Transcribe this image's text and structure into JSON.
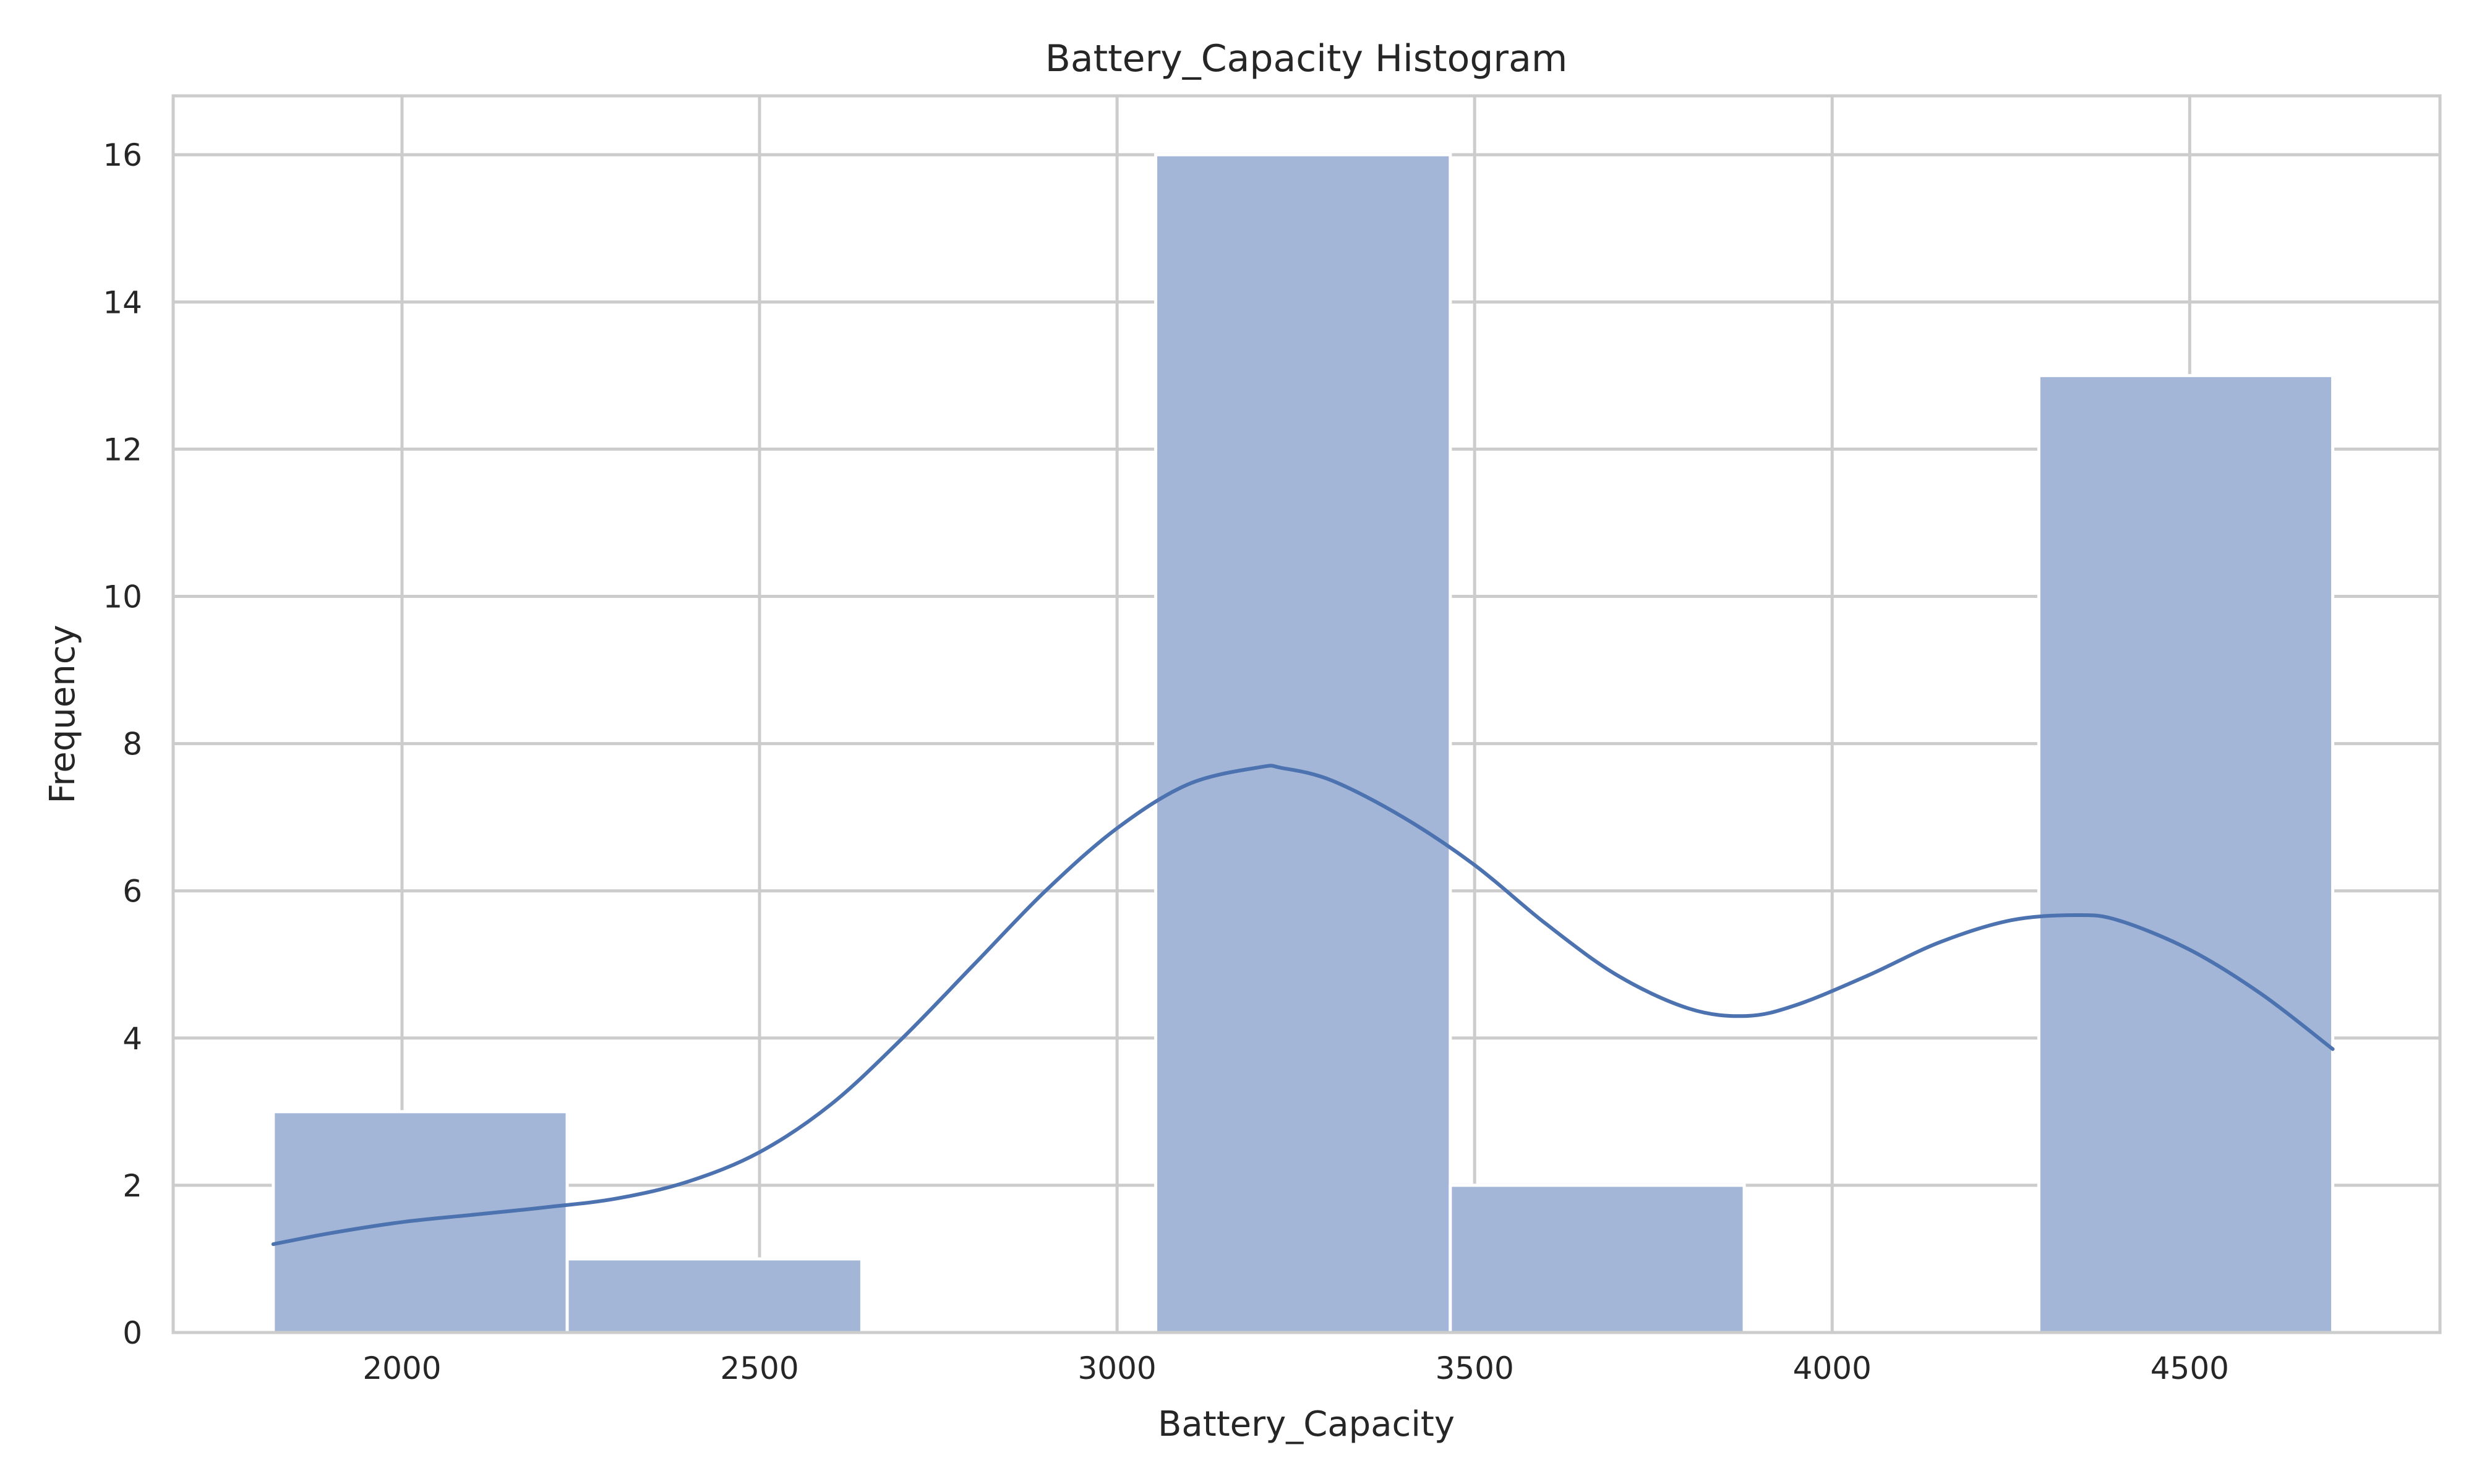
{
  "chart_data": {
    "type": "histogram",
    "title": "Battery_Capacity Histogram",
    "xlabel": "Battery_Capacity",
    "ylabel": "Frequency",
    "xlim": [
      1680,
      4850
    ],
    "ylim": [
      0,
      16.8
    ],
    "xticks": [
      2000,
      2500,
      3000,
      3500,
      4000,
      4500
    ],
    "yticks": [
      0,
      2,
      4,
      6,
      8,
      10,
      12,
      14,
      16
    ],
    "grid": true,
    "bins": [
      {
        "start": 1820,
        "end": 2231,
        "count": 3
      },
      {
        "start": 2231,
        "end": 2643,
        "count": 1
      },
      {
        "start": 2643,
        "end": 3054,
        "count": 0
      },
      {
        "start": 3054,
        "end": 3466,
        "count": 16
      },
      {
        "start": 3466,
        "end": 3877,
        "count": 2
      },
      {
        "start": 3877,
        "end": 4289,
        "count": 0
      },
      {
        "start": 4289,
        "end": 4700,
        "count": 13
      }
    ],
    "kde": {
      "x": [
        1820,
        1900,
        2000,
        2100,
        2200,
        2300,
        2400,
        2500,
        2600,
        2700,
        2800,
        2900,
        3000,
        3100,
        3200,
        3230,
        3300,
        3400,
        3500,
        3600,
        3700,
        3800,
        3880,
        3950,
        4050,
        4150,
        4250,
        4340,
        4400,
        4500,
        4600,
        4700
      ],
      "y": [
        1.2,
        1.35,
        1.5,
        1.6,
        1.7,
        1.82,
        2.05,
        2.45,
        3.1,
        4.0,
        5.0,
        6.0,
        6.85,
        7.45,
        7.68,
        7.67,
        7.5,
        7.0,
        6.35,
        5.55,
        4.85,
        4.4,
        4.3,
        4.45,
        4.85,
        5.3,
        5.6,
        5.67,
        5.6,
        5.2,
        4.6,
        3.85
      ]
    },
    "colors": {
      "bar_fill": "#a3b6d7",
      "kde_line": "#4c72b0",
      "grid": "#cccccc"
    }
  }
}
